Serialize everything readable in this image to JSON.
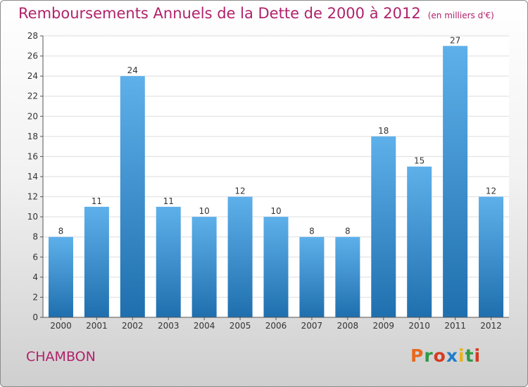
{
  "header": {
    "title": "Remboursements Annuels de la Dette de 2000 à 2012",
    "unit": "(en milliers d'€)"
  },
  "footer": {
    "commune": "CHAMBON",
    "logo_text": "Proxiti",
    "logo_colors": [
      "#e8691f",
      "#2f9a45",
      "#d63a1f",
      "#1f7ec8",
      "#e8b21f",
      "#2f9a45",
      "#d63a1f"
    ]
  },
  "colors": {
    "title": "#b0226a",
    "bar_top": "#5eb0ea",
    "bar_bottom": "#1f6fae",
    "grid": "#dedede"
  },
  "chart_data": {
    "type": "bar",
    "categories": [
      "2000",
      "2001",
      "2002",
      "2003",
      "2004",
      "2005",
      "2006",
      "2007",
      "2008",
      "2009",
      "2010",
      "2011",
      "2012"
    ],
    "values": [
      8,
      11,
      24,
      11,
      10,
      12,
      10,
      8,
      8,
      18,
      15,
      27,
      12
    ],
    "ylim": [
      0,
      28
    ],
    "yticks": [
      0,
      2,
      4,
      6,
      8,
      10,
      12,
      14,
      16,
      18,
      20,
      22,
      24,
      26,
      28
    ],
    "grid": true,
    "data_labels": true
  }
}
